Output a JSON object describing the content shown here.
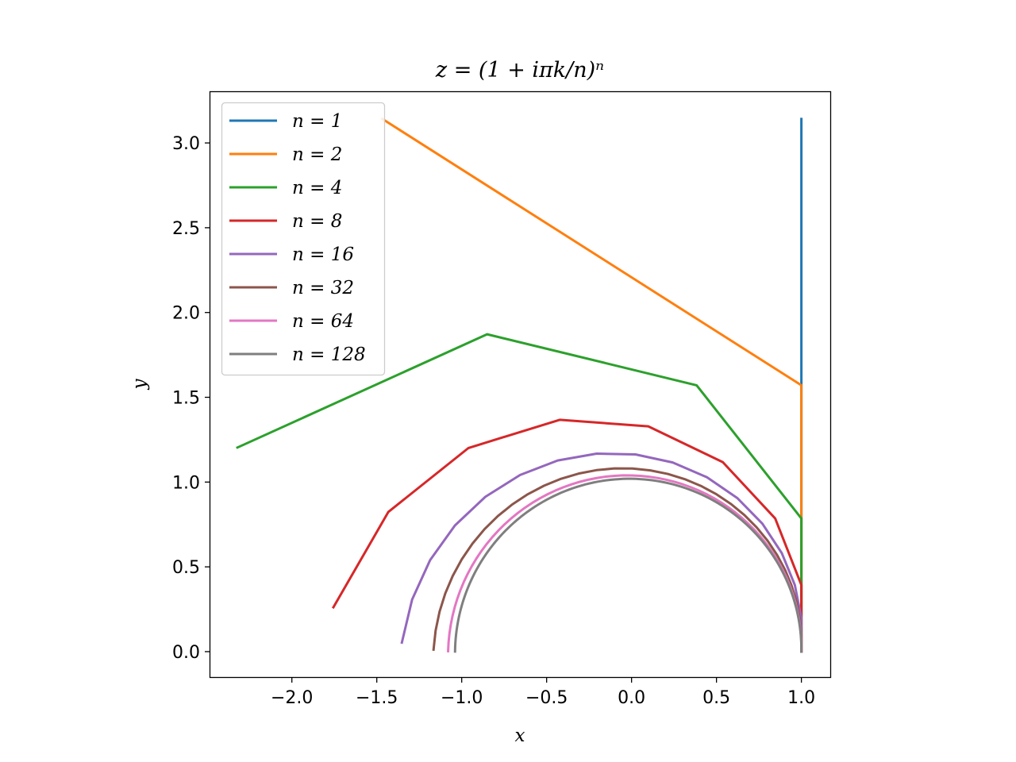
{
  "chart_data": {
    "type": "line",
    "title": "z = (1 + iπk/n)ⁿ",
    "xlabel": "x",
    "ylabel": "y",
    "xlim": [
      -2.48,
      1.17
    ],
    "ylim": [
      -0.15,
      3.3
    ],
    "xticks": [
      -2.0,
      -1.5,
      -1.0,
      -0.5,
      0.0,
      0.5,
      1.0
    ],
    "xtick_labels": [
      "−2.0",
      "−1.5",
      "−1.0",
      "−0.5",
      "0.0",
      "0.5",
      "1.0"
    ],
    "yticks": [
      0.0,
      0.5,
      1.0,
      1.5,
      2.0,
      2.5,
      3.0
    ],
    "ytick_labels": [
      "0.0",
      "0.5",
      "1.0",
      "1.5",
      "2.0",
      "2.5",
      "3.0"
    ],
    "grid": false,
    "legend_position": "top-left",
    "series": [
      {
        "name": "n = 1",
        "color": "#1f77b4",
        "formula_n": 1
      },
      {
        "name": "n = 2",
        "color": "#ff7f0e",
        "formula_n": 2
      },
      {
        "name": "n = 4",
        "color": "#2ca02c",
        "formula_n": 4
      },
      {
        "name": "n = 8",
        "color": "#d62728",
        "formula_n": 8
      },
      {
        "name": "n = 16",
        "color": "#9467bd",
        "formula_n": 16
      },
      {
        "name": "n = 32",
        "color": "#8c564b",
        "formula_n": 32
      },
      {
        "name": "n = 64",
        "color": "#e377c2",
        "formula_n": 64
      },
      {
        "name": "n = 128",
        "color": "#7f7f7f",
        "formula_n": 128
      }
    ]
  }
}
